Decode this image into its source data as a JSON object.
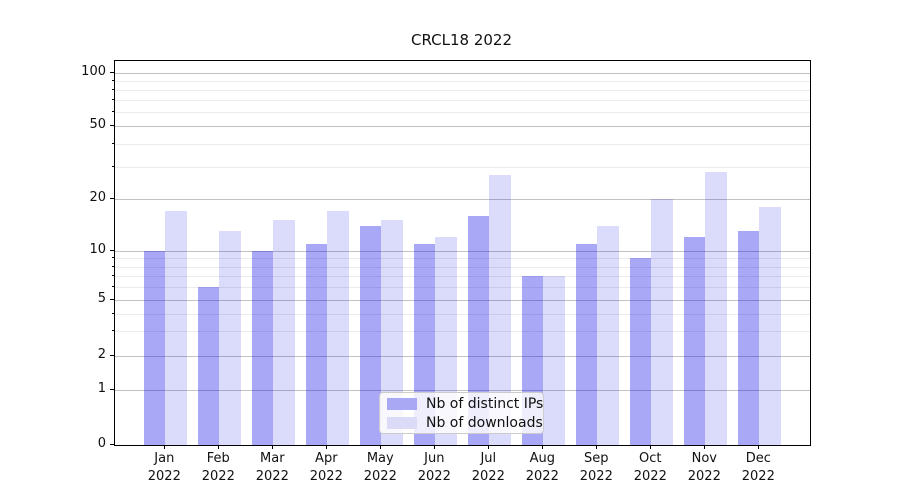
{
  "title": "CRCL18 2022",
  "chart_data": {
    "type": "bar",
    "title": "CRCL18 2022",
    "categories": [
      "Jan 2022",
      "Feb 2022",
      "Mar 2022",
      "Apr 2022",
      "May 2022",
      "Jun 2022",
      "Jul 2022",
      "Aug 2022",
      "Sep 2022",
      "Oct 2022",
      "Nov 2022",
      "Dec 2022"
    ],
    "x_tick_months": [
      "Jan",
      "Feb",
      "Mar",
      "Apr",
      "May",
      "Jun",
      "Jul",
      "Aug",
      "Sep",
      "Oct",
      "Nov",
      "Dec"
    ],
    "x_tick_year": "2022",
    "series": [
      {
        "name": "Nb of distinct IPs",
        "color": "rgba(0,0,230,0.34)",
        "legend_color": "#a8a8f4",
        "values": [
          10,
          6,
          10,
          11,
          14,
          11,
          16,
          7,
          11,
          9,
          12,
          13
        ]
      },
      {
        "name": "Nb of downloads",
        "color": "rgba(0,0,230,0.14)",
        "legend_color": "#dbdbf8",
        "values": [
          17,
          13,
          15,
          17,
          15,
          12,
          27,
          7,
          14,
          20,
          28,
          18
        ]
      }
    ],
    "yscale": "symlog",
    "ylim": [
      0,
      120
    ],
    "y_major_ticks": [
      0,
      1,
      2,
      5,
      10,
      20,
      50,
      100
    ],
    "y_minor_ticks": [
      3,
      4,
      6,
      7,
      8,
      9,
      30,
      40,
      60,
      70,
      80,
      90
    ],
    "grid": "horizontal",
    "legend_position": "lower center",
    "xlabel": "",
    "ylabel": ""
  }
}
